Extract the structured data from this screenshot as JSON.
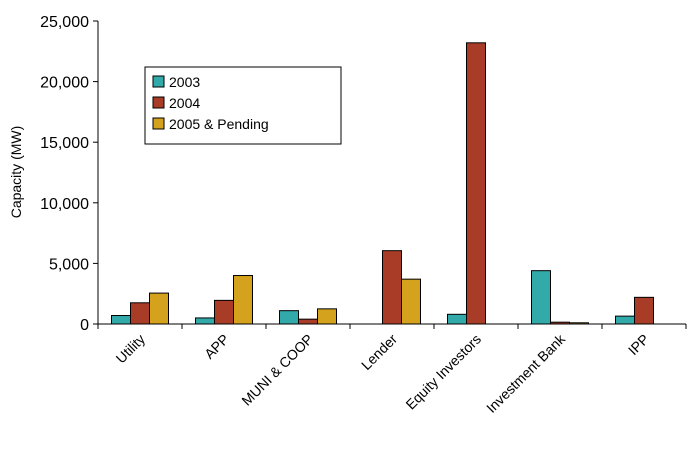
{
  "chart_data": {
    "type": "bar",
    "title": "",
    "xlabel": "",
    "ylabel": "Capacity (MW)",
    "ylim": [
      0,
      25000
    ],
    "yticks": [
      0,
      5000,
      10000,
      15000,
      20000,
      25000
    ],
    "ytick_labels": [
      "0",
      "5,000",
      "10,000",
      "15,000",
      "20,000",
      "25,000"
    ],
    "grid": false,
    "legend_position": "top-left",
    "categories": [
      "Utility",
      "APP",
      "MUNI & COOP",
      "Lender",
      "Equity Investors",
      "Investment Bank",
      "IPP"
    ],
    "series": [
      {
        "name": "2003",
        "color": "#33AAAA",
        "values": [
          700,
          500,
          1100,
          0,
          800,
          4400,
          650
        ]
      },
      {
        "name": "2004",
        "color": "#A93C26",
        "values": [
          1750,
          1950,
          400,
          6050,
          23200,
          150,
          2200
        ]
      },
      {
        "name": "2005 & Pending",
        "color": "#D4A21C",
        "values": [
          2550,
          4000,
          1250,
          3700,
          0,
          100,
          0
        ]
      }
    ]
  }
}
